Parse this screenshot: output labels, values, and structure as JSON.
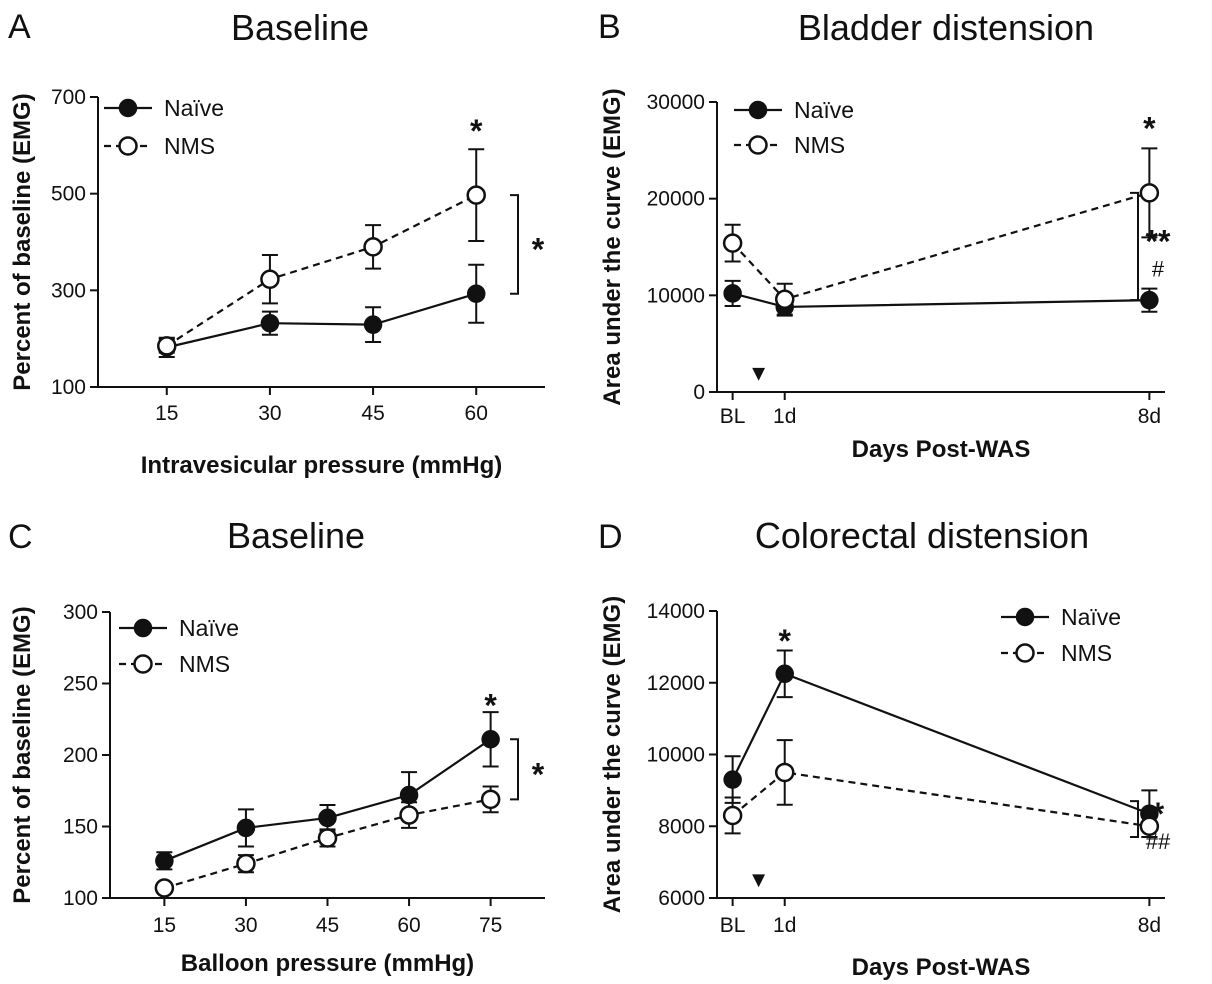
{
  "chart_data": [
    {
      "panel": "A",
      "type": "line",
      "title": "Baseline",
      "xlabel": "Intravesicular pressure (mmHg)",
      "ylabel": "Percent of baseline (EMG)",
      "x": [
        15,
        30,
        45,
        60
      ],
      "xtick_labels": [
        "15",
        "30",
        "45",
        "60"
      ],
      "xlim": [
        5,
        70
      ],
      "ylim": [
        100,
        700
      ],
      "yticks": [
        100,
        300,
        500,
        700
      ],
      "ytick_labels": [
        "100",
        "300",
        "500",
        "700"
      ],
      "legend_position": "top-left",
      "series": [
        {
          "name": "Naïve",
          "style": "solid",
          "marker": "filled-circle",
          "values": [
            182,
            232,
            229,
            293
          ],
          "errors": [
            20,
            24,
            36,
            60
          ]
        },
        {
          "name": "NMS",
          "style": "dashed",
          "marker": "open-circle",
          "values": [
            185,
            323,
            390,
            497
          ],
          "errors": [
            14,
            50,
            45,
            95
          ]
        }
      ],
      "annotations": [
        {
          "text": "*",
          "x": 60,
          "y": 640
        }
      ],
      "brackets": [
        {
          "y": [
            293,
            497
          ],
          "labels": [
            "*"
          ]
        }
      ]
    },
    {
      "panel": "B",
      "type": "line",
      "title": "Bladder distension",
      "xlabel": "Days Post-WAS",
      "ylabel": "Area under the curve (EMG)",
      "x": [
        0,
        1,
        8
      ],
      "xtick_labels": [
        "BL",
        "1d",
        "8d"
      ],
      "xlim": [
        -0.3,
        8.3
      ],
      "ylim": [
        0,
        30000
      ],
      "yticks": [
        0,
        10000,
        20000,
        30000
      ],
      "ytick_labels": [
        "0",
        "10000",
        "20000",
        "30000"
      ],
      "legend_position": "top-left",
      "series": [
        {
          "name": "Naïve",
          "style": "solid",
          "marker": "filled-circle",
          "values": [
            10200,
            8800,
            9500
          ],
          "errors": [
            1300,
            900,
            1200
          ]
        },
        {
          "name": "NMS",
          "style": "dashed",
          "marker": "open-circle",
          "values": [
            15400,
            9600,
            20600
          ],
          "errors": [
            1900,
            1600,
            4600
          ]
        }
      ],
      "annotations": [
        {
          "text": "*",
          "x": 8,
          "y": 27800
        },
        {
          "text": "▼",
          "x": 0.5,
          "y": 1200
        }
      ],
      "brackets": [
        {
          "y": [
            9500,
            20600
          ],
          "labels": [
            "**",
            "#"
          ]
        }
      ]
    },
    {
      "panel": "C",
      "type": "line",
      "title": "Baseline",
      "xlabel": "Balloon pressure (mmHg)",
      "ylabel": "Percent of baseline (EMG)",
      "x": [
        15,
        30,
        45,
        60,
        75
      ],
      "xtick_labels": [
        "15",
        "30",
        "45",
        "60",
        "75"
      ],
      "xlim": [
        5,
        85
      ],
      "ylim": [
        100,
        300
      ],
      "yticks": [
        100,
        150,
        200,
        250,
        300
      ],
      "ytick_labels": [
        "100",
        "150",
        "200",
        "250",
        "300"
      ],
      "legend_position": "top-left",
      "series": [
        {
          "name": "Naïve",
          "style": "solid",
          "marker": "filled-circle",
          "values": [
            126,
            149,
            156,
            172,
            211
          ],
          "errors": [
            6,
            13,
            9,
            16,
            19
          ]
        },
        {
          "name": "NMS",
          "style": "dashed",
          "marker": "open-circle",
          "values": [
            107,
            124,
            142,
            158,
            169
          ],
          "errors": [
            3,
            6,
            6,
            9,
            9
          ]
        }
      ],
      "annotations": [
        {
          "text": "*",
          "x": 75,
          "y": 238
        }
      ],
      "brackets": [
        {
          "y": [
            169,
            211
          ],
          "labels": [
            "*"
          ]
        }
      ]
    },
    {
      "panel": "D",
      "type": "line",
      "title": "Colorectal distension",
      "xlabel": "Days Post-WAS",
      "ylabel": "Area under the curve (EMG)",
      "x": [
        0,
        1,
        8
      ],
      "xtick_labels": [
        "BL",
        "1d",
        "8d"
      ],
      "xlim": [
        -0.3,
        8.3
      ],
      "ylim": [
        6000,
        14000
      ],
      "yticks": [
        6000,
        8000,
        10000,
        12000,
        14000
      ],
      "ytick_labels": [
        "6000",
        "8000",
        "10000",
        "12000",
        "14000"
      ],
      "legend_position": "top-right",
      "series": [
        {
          "name": "Naïve",
          "style": "solid",
          "marker": "filled-circle",
          "values": [
            9300,
            12250,
            8350
          ],
          "errors": [
            650,
            650,
            650
          ]
        },
        {
          "name": "NMS",
          "style": "dashed",
          "marker": "open-circle",
          "values": [
            8300,
            9500,
            8000
          ],
          "errors": [
            500,
            900,
            300
          ]
        }
      ],
      "annotations": [
        {
          "text": "*",
          "x": 1,
          "y": 13300
        },
        {
          "text": "▼",
          "x": 0.5,
          "y": 6300
        }
      ],
      "brackets": [
        {
          "y": [
            7700,
            8700
          ],
          "labels": [
            "*",
            "##"
          ]
        }
      ]
    }
  ]
}
